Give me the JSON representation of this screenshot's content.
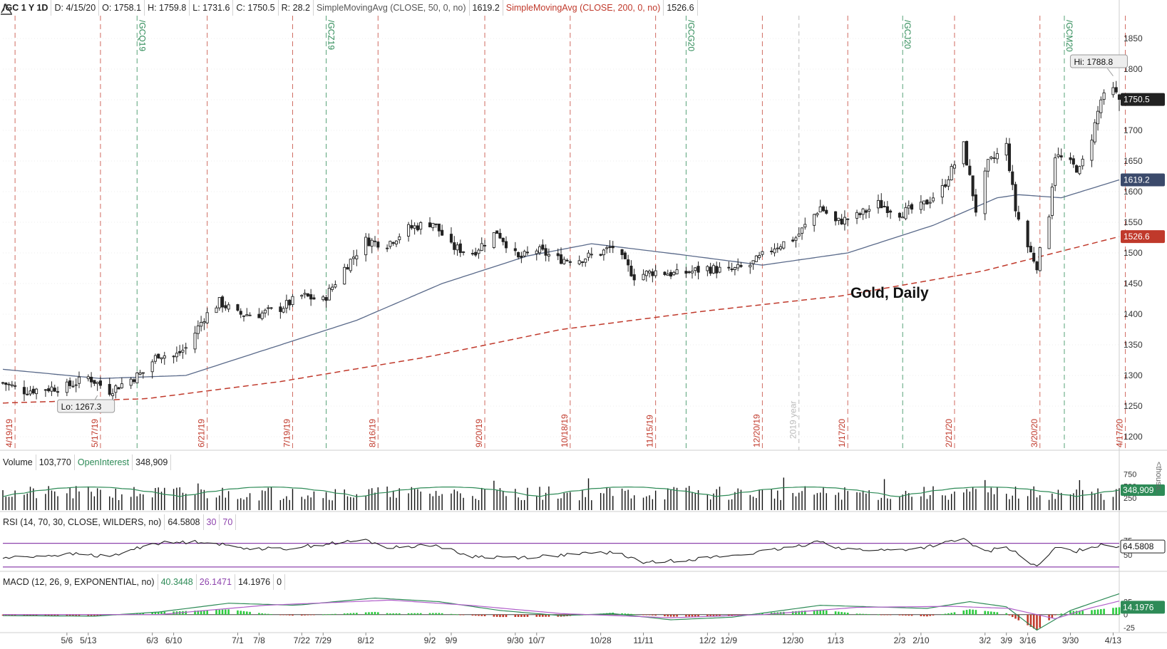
{
  "header": {
    "symbol": "/GC 1 Y 1D",
    "date": "D: 4/15/20",
    "open": "O: 1758.1",
    "high": "H: 1759.8",
    "low": "L: 1731.6",
    "close": "C: 1750.5",
    "range": "R: 28.2",
    "sma50_label": "SimpleMovingAvg (CLOSE, 50, 0, no)",
    "sma50_value": "1619.2",
    "sma200_label": "SimpleMovingAvg (CLOSE, 200, 0, no)",
    "sma200_value": "1526.6"
  },
  "volume_header": {
    "label": "Volume",
    "value": "103,770",
    "oi_label": "OpenInterest",
    "oi_value": "348,909"
  },
  "rsi_header": {
    "label": "RSI (14, 70, 30, CLOSE, WILDERS, no)",
    "value": "64.5808",
    "low": "30",
    "high": "70"
  },
  "macd_header": {
    "label": "MACD (12, 26, 9, EXPONENTIAL, no)",
    "value": "40.3448",
    "avg": "26.1471",
    "diff": "14.1976",
    "zero": "0"
  },
  "colors": {
    "up": "#222222",
    "down": "#222222",
    "sma50": "#5a6a8a",
    "sma200": "#c0392b",
    "expiry": "#2e8b57",
    "options": "#c0392b",
    "volume": "#111111",
    "oi": "#2e8b57",
    "rsi": "#222222",
    "rsi_bands": "#8e44ad",
    "macd": "#2e8b57",
    "macd_avg": "#b05ec9"
  },
  "chart_data": {
    "type": "candlestick",
    "title": "Gold, Daily",
    "ylim": [
      1200,
      1850
    ],
    "yticks": [
      1200,
      1250,
      1300,
      1350,
      1400,
      1450,
      1500,
      1550,
      1600,
      1650,
      1700,
      1750,
      1800,
      1850
    ],
    "price_labels": {
      "last": "1750.5",
      "sma50": "1619.2",
      "sma200": "1526.6"
    },
    "hi_label": "Hi: 1788.8",
    "lo_label": "Lo: 1267.3",
    "year_marker": "2019 year",
    "x_ticks": [
      "5/6",
      "5/13",
      "6/3",
      "6/10",
      "7/1",
      "7/8",
      "7/22",
      "7/29",
      "8/12",
      "9/2",
      "9/9",
      "9/30",
      "10/7",
      "10/28",
      "11/11",
      "12/2",
      "12/9",
      "12/30",
      "1/13",
      "2/3",
      "2/10",
      "3/2",
      "3/9",
      "3/16",
      "3/30",
      "4/13"
    ],
    "option_expirations": [
      "4/19/19",
      "5/17/19",
      "6/21/19",
      "7/19/19",
      "8/16/19",
      "9/20/19",
      "10/18/19",
      "11/15/19",
      "12/20/19",
      "1/17/20",
      "2/21/20",
      "3/20/20",
      "4/17/20"
    ],
    "contract_rolls": [
      "/GCQ19",
      "/GCZ19",
      "/GCG20",
      "/GCJ20",
      "/GCM20"
    ],
    "anchors": [
      {
        "d": "4/15/19",
        "c": 1288
      },
      {
        "d": "4/22/19",
        "c": 1275
      },
      {
        "d": "5/6/19",
        "c": 1282
      },
      {
        "d": "5/13/19",
        "c": 1297
      },
      {
        "d": "5/20/19",
        "c": 1275
      },
      {
        "d": "5/31/19",
        "c": 1305
      },
      {
        "d": "6/5/19",
        "c": 1335
      },
      {
        "d": "6/10/19",
        "c": 1330
      },
      {
        "d": "6/14/19",
        "c": 1345
      },
      {
        "d": "6/20/19",
        "c": 1395
      },
      {
        "d": "6/25/19",
        "c": 1420
      },
      {
        "d": "7/1/19",
        "c": 1400
      },
      {
        "d": "7/8/19",
        "c": 1400
      },
      {
        "d": "7/15/19",
        "c": 1410
      },
      {
        "d": "7/22/19",
        "c": 1430
      },
      {
        "d": "7/29/19",
        "c": 1422
      },
      {
        "d": "8/5/19",
        "c": 1475
      },
      {
        "d": "8/12/19",
        "c": 1520
      },
      {
        "d": "8/19/19",
        "c": 1515
      },
      {
        "d": "8/26/19",
        "c": 1540
      },
      {
        "d": "9/3/19",
        "c": 1550
      },
      {
        "d": "9/9/19",
        "c": 1510
      },
      {
        "d": "9/16/19",
        "c": 1500
      },
      {
        "d": "9/24/19",
        "c": 1535
      },
      {
        "d": "10/1/19",
        "c": 1490
      },
      {
        "d": "10/7/19",
        "c": 1505
      },
      {
        "d": "10/14/19",
        "c": 1490
      },
      {
        "d": "10/21/19",
        "c": 1490
      },
      {
        "d": "10/28/19",
        "c": 1500
      },
      {
        "d": "11/1/19",
        "c": 1510
      },
      {
        "d": "11/8/19",
        "c": 1462
      },
      {
        "d": "11/15/19",
        "c": 1470
      },
      {
        "d": "11/22/19",
        "c": 1465
      },
      {
        "d": "12/2/19",
        "c": 1475
      },
      {
        "d": "12/9/19",
        "c": 1470
      },
      {
        "d": "12/16/19",
        "c": 1480
      },
      {
        "d": "12/24/19",
        "c": 1510
      },
      {
        "d": "12/31/19",
        "c": 1525
      },
      {
        "d": "1/8/20",
        "c": 1575
      },
      {
        "d": "1/13/20",
        "c": 1550
      },
      {
        "d": "1/20/20",
        "c": 1560
      },
      {
        "d": "1/27/20",
        "c": 1580
      },
      {
        "d": "2/3/20",
        "c": 1565
      },
      {
        "d": "2/10/20",
        "c": 1575
      },
      {
        "d": "2/17/20",
        "c": 1605
      },
      {
        "d": "2/24/20",
        "c": 1675
      },
      {
        "d": "2/28/20",
        "c": 1570
      },
      {
        "d": "3/3/20",
        "c": 1645
      },
      {
        "d": "3/9/20",
        "c": 1675
      },
      {
        "d": "3/12/20",
        "c": 1570
      },
      {
        "d": "3/16/20",
        "c": 1510
      },
      {
        "d": "3/19/20",
        "c": 1480
      },
      {
        "d": "3/23/20",
        "c": 1565
      },
      {
        "d": "3/25/20",
        "c": 1660
      },
      {
        "d": "3/30/20",
        "c": 1645
      },
      {
        "d": "4/2/20",
        "c": 1635
      },
      {
        "d": "4/6/20",
        "c": 1690
      },
      {
        "d": "4/9/20",
        "c": 1750
      },
      {
        "d": "4/13/20",
        "c": 1765
      },
      {
        "d": "4/15/20",
        "c": 1750.5
      }
    ],
    "sma50_points": [
      {
        "d": "4/15/19",
        "v": 1310
      },
      {
        "d": "5/17/19",
        "v": 1295
      },
      {
        "d": "6/14/19",
        "v": 1300
      },
      {
        "d": "7/12/19",
        "v": 1345
      },
      {
        "d": "8/9/19",
        "v": 1390
      },
      {
        "d": "9/6/19",
        "v": 1450
      },
      {
        "d": "10/4/19",
        "v": 1495
      },
      {
        "d": "10/25/19",
        "v": 1515
      },
      {
        "d": "11/22/19",
        "v": 1498
      },
      {
        "d": "12/20/19",
        "v": 1480
      },
      {
        "d": "1/17/20",
        "v": 1500
      },
      {
        "d": "2/14/20",
        "v": 1545
      },
      {
        "d": "3/6/20",
        "v": 1590
      },
      {
        "d": "3/13/20",
        "v": 1595
      },
      {
        "d": "3/27/20",
        "v": 1590
      },
      {
        "d": "4/15/20",
        "v": 1619.2
      }
    ],
    "sma200_points": [
      {
        "d": "4/15/19",
        "v": 1255
      },
      {
        "d": "6/1/19",
        "v": 1262
      },
      {
        "d": "7/15/19",
        "v": 1290
      },
      {
        "d": "9/1/19",
        "v": 1330
      },
      {
        "d": "10/15/19",
        "v": 1375
      },
      {
        "d": "12/1/19",
        "v": 1405
      },
      {
        "d": "1/15/20",
        "v": 1430
      },
      {
        "d": "3/1/20",
        "v": 1470
      },
      {
        "d": "4/15/20",
        "v": 1526.6
      }
    ],
    "volume": {
      "yticks": [
        250,
        500,
        750
      ],
      "ylim": [
        0,
        800
      ],
      "unit_label": "<thousa...",
      "oi_last": "348,909"
    },
    "rsi": {
      "yticks": [
        50,
        75
      ],
      "ylim": [
        25,
        90
      ],
      "bands": [
        30,
        70
      ],
      "last": "64.5808",
      "points": [
        {
          "d": "4/15/19",
          "v": 45
        },
        {
          "d": "5/1/19",
          "v": 50
        },
        {
          "d": "5/10/19",
          "v": 52
        },
        {
          "d": "5/20/19",
          "v": 47
        },
        {
          "d": "6/3/19",
          "v": 70
        },
        {
          "d": "6/20/19",
          "v": 73
        },
        {
          "d": "7/1/19",
          "v": 63
        },
        {
          "d": "7/15/19",
          "v": 60
        },
        {
          "d": "8/1/19",
          "v": 70
        },
        {
          "d": "8/12/19",
          "v": 75
        },
        {
          "d": "8/20/19",
          "v": 62
        },
        {
          "d": "9/3/19",
          "v": 68
        },
        {
          "d": "9/15/19",
          "v": 48
        },
        {
          "d": "10/1/19",
          "v": 46
        },
        {
          "d": "10/15/19",
          "v": 50
        },
        {
          "d": "11/1/19",
          "v": 55
        },
        {
          "d": "11/12/19",
          "v": 37
        },
        {
          "d": "12/1/19",
          "v": 45
        },
        {
          "d": "12/15/19",
          "v": 52
        },
        {
          "d": "1/1/20",
          "v": 65
        },
        {
          "d": "1/8/20",
          "v": 75
        },
        {
          "d": "1/15/20",
          "v": 60
        },
        {
          "d": "2/1/20",
          "v": 58
        },
        {
          "d": "2/10/20",
          "v": 62
        },
        {
          "d": "2/24/20",
          "v": 77
        },
        {
          "d": "3/2/20",
          "v": 55
        },
        {
          "d": "3/9/20",
          "v": 65
        },
        {
          "d": "3/19/20",
          "v": 29
        },
        {
          "d": "3/25/20",
          "v": 62
        },
        {
          "d": "4/1/20",
          "v": 57
        },
        {
          "d": "4/9/20",
          "v": 68
        },
        {
          "d": "4/15/20",
          "v": 64.58
        }
      ]
    },
    "macd": {
      "yticks": [
        25,
        0,
        -25
      ],
      "ylim": [
        -32,
        45
      ],
      "last_diff": "14.1976",
      "value_points": [
        {
          "d": "4/15/19",
          "v": -2
        },
        {
          "d": "5/15/19",
          "v": -3
        },
        {
          "d": "6/5/19",
          "v": 5
        },
        {
          "d": "6/28/19",
          "v": 22
        },
        {
          "d": "7/20/19",
          "v": 18
        },
        {
          "d": "8/15/19",
          "v": 32
        },
        {
          "d": "9/5/19",
          "v": 25
        },
        {
          "d": "9/25/19",
          "v": 8
        },
        {
          "d": "10/15/19",
          "v": -2
        },
        {
          "d": "11/1/19",
          "v": 2
        },
        {
          "d": "11/20/19",
          "v": -10
        },
        {
          "d": "12/10/19",
          "v": -5
        },
        {
          "d": "1/8/20",
          "v": 18
        },
        {
          "d": "1/25/20",
          "v": 15
        },
        {
          "d": "2/12/20",
          "v": 12
        },
        {
          "d": "2/26/20",
          "v": 25
        },
        {
          "d": "3/9/20",
          "v": 15
        },
        {
          "d": "3/19/20",
          "v": -30
        },
        {
          "d": "3/30/20",
          "v": 8
        },
        {
          "d": "4/15/20",
          "v": 40.34
        }
      ],
      "avg_points": [
        {
          "d": "4/15/19",
          "v": 0
        },
        {
          "d": "6/5/19",
          "v": 0
        },
        {
          "d": "7/10/19",
          "v": 18
        },
        {
          "d": "8/20/19",
          "v": 28
        },
        {
          "d": "9/15/19",
          "v": 18
        },
        {
          "d": "10/15/19",
          "v": 2
        },
        {
          "d": "11/20/19",
          "v": -6
        },
        {
          "d": "12/20/19",
          "v": 0
        },
        {
          "d": "1/20/20",
          "v": 14
        },
        {
          "d": "2/20/20",
          "v": 16
        },
        {
          "d": "3/10/20",
          "v": 12
        },
        {
          "d": "3/25/20",
          "v": -8
        },
        {
          "d": "4/5/20",
          "v": 12
        },
        {
          "d": "4/15/20",
          "v": 26.15
        }
      ]
    }
  }
}
